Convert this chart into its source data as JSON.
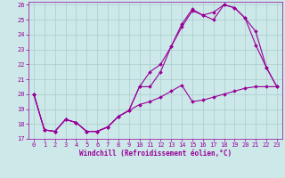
{
  "xlabel": "Windchill (Refroidissement éolien,°C)",
  "bg_color": "#cce8e8",
  "line_color": "#990099",
  "grid_color": "#aacccc",
  "xlim": [
    -0.5,
    23.5
  ],
  "ylim": [
    17,
    26.2
  ],
  "xticks": [
    0,
    1,
    2,
    3,
    4,
    5,
    6,
    7,
    8,
    9,
    10,
    11,
    12,
    13,
    14,
    15,
    16,
    17,
    18,
    19,
    20,
    21,
    22,
    23
  ],
  "yticks": [
    17,
    18,
    19,
    20,
    21,
    22,
    23,
    24,
    25,
    26
  ],
  "line1_x": [
    0,
    1,
    2,
    3,
    4,
    5,
    6,
    7,
    8,
    9,
    10,
    11,
    12,
    13,
    14,
    15,
    16,
    17,
    18,
    19,
    20,
    21,
    22,
    23
  ],
  "line1_y": [
    20.0,
    17.6,
    17.5,
    18.3,
    18.1,
    17.5,
    17.5,
    17.8,
    18.5,
    18.9,
    20.5,
    21.5,
    22.0,
    23.2,
    24.7,
    25.7,
    25.3,
    25.5,
    26.0,
    25.8,
    25.1,
    23.3,
    21.8,
    20.5
  ],
  "line2_x": [
    0,
    1,
    2,
    3,
    4,
    5,
    6,
    7,
    8,
    9,
    10,
    11,
    12,
    13,
    14,
    15,
    16,
    17,
    18,
    19,
    20,
    21,
    22,
    23
  ],
  "line2_y": [
    20.0,
    17.6,
    17.5,
    18.3,
    18.1,
    17.5,
    17.5,
    17.8,
    18.5,
    18.9,
    20.5,
    20.5,
    21.5,
    23.2,
    24.5,
    25.6,
    25.3,
    25.0,
    26.0,
    25.8,
    25.1,
    24.2,
    21.8,
    20.5
  ],
  "line3_x": [
    0,
    1,
    2,
    3,
    4,
    5,
    6,
    7,
    8,
    9,
    10,
    11,
    12,
    13,
    14,
    15,
    16,
    17,
    18,
    19,
    20,
    21,
    22,
    23
  ],
  "line3_y": [
    20.0,
    17.6,
    17.5,
    18.3,
    18.1,
    17.5,
    17.5,
    17.8,
    18.5,
    18.9,
    19.3,
    19.5,
    19.8,
    20.2,
    20.6,
    19.5,
    19.6,
    19.8,
    20.0,
    20.2,
    20.4,
    20.5,
    20.5,
    20.5
  ]
}
